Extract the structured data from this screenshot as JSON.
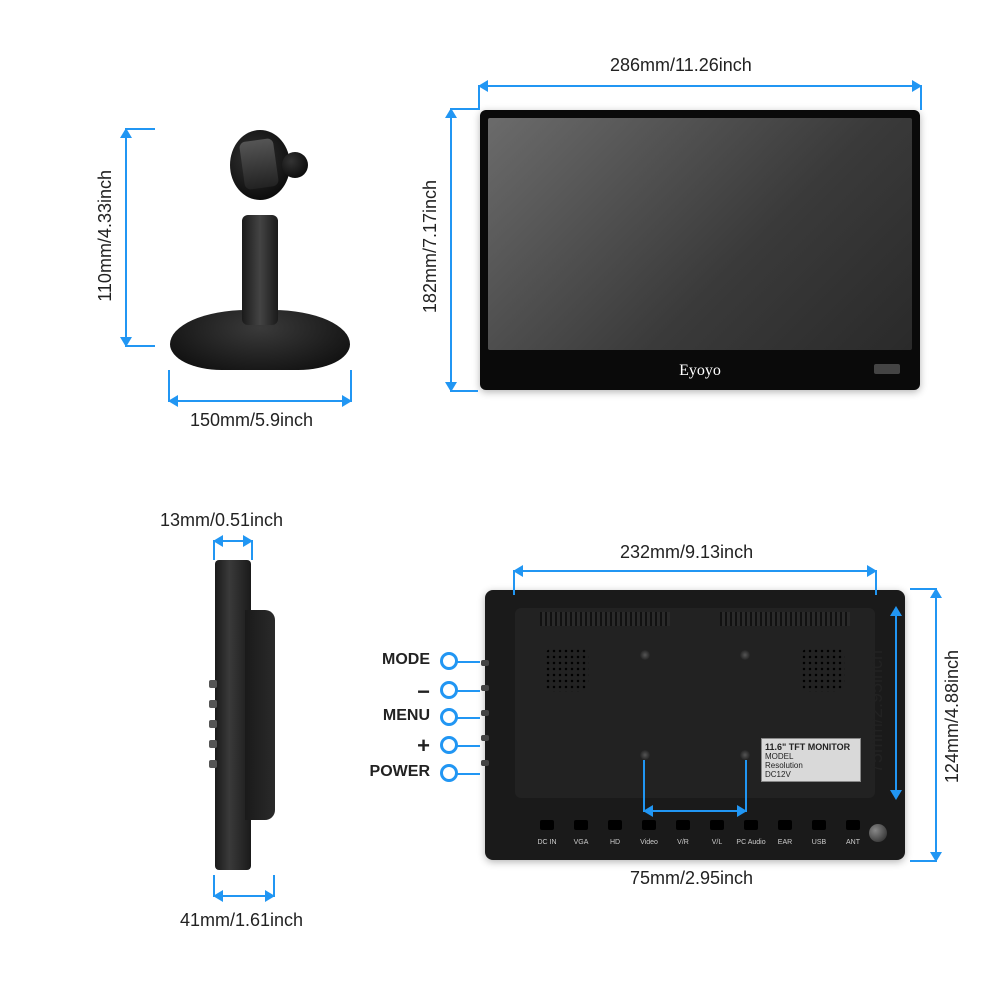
{
  "colors": {
    "accent": "#2196f3",
    "text": "#222222",
    "bg": "#ffffff",
    "monitor_body": "#0a0a0a",
    "screen_gradient_from": "#6b6b6b",
    "screen_gradient_to": "#2a2a2a",
    "back_body": "#1a1a1a"
  },
  "brand": "Eyoyo",
  "stand": {
    "height": "110mm/4.33inch",
    "width": "150mm/5.9inch"
  },
  "monitor_front": {
    "width": "286mm/11.26inch",
    "height": "182mm/7.17inch"
  },
  "side": {
    "top_depth": "13mm/0.51inch",
    "bottom_depth": "41mm/1.61inch"
  },
  "back": {
    "inner_width": "232mm/9.13inch",
    "outer_height": "124mm/4.88inch",
    "mount_v": "75mm/2.95inch",
    "mount_h": "75mm/2.95inch",
    "sticker_title": "11.6\" TFT MONITOR",
    "sticker_line2": "MODEL",
    "sticker_line3": "Resolution",
    "sticker_line4": "DC12V",
    "ports": [
      "DC IN",
      "VGA",
      "HD",
      "Video",
      "V/R",
      "V/L",
      "PC Audio",
      "EAR",
      "USB",
      "ANT"
    ]
  },
  "buttons": {
    "mode": "MODE",
    "minus": "−",
    "menu": "MENU",
    "plus": "+",
    "power": "POWER"
  }
}
